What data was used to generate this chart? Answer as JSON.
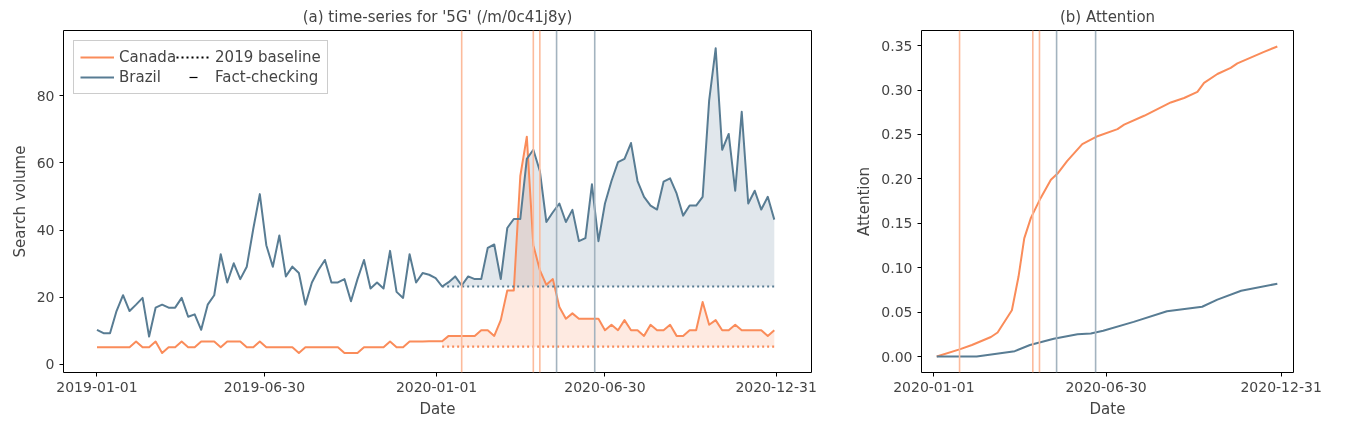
{
  "chart_data": [
    {
      "type": "line",
      "title": "(a) time-series for '5G' (/m/0c41j8y)",
      "xlabel": "Date",
      "ylabel": "Search volume",
      "x": [
        "2019-01-01",
        "2019-01-08",
        "2019-01-15",
        "2019-01-22",
        "2019-01-29",
        "2019-02-05",
        "2019-02-12",
        "2019-02-19",
        "2019-02-26",
        "2019-03-05",
        "2019-03-12",
        "2019-03-19",
        "2019-03-26",
        "2019-04-02",
        "2019-04-09",
        "2019-04-16",
        "2019-04-23",
        "2019-04-30",
        "2019-05-07",
        "2019-05-14",
        "2019-05-21",
        "2019-05-28",
        "2019-06-04",
        "2019-06-11",
        "2019-06-18",
        "2019-06-25",
        "2019-07-02",
        "2019-07-09",
        "2019-07-16",
        "2019-07-23",
        "2019-07-30",
        "2019-08-06",
        "2019-08-13",
        "2019-08-20",
        "2019-08-27",
        "2019-09-03",
        "2019-09-10",
        "2019-09-17",
        "2019-09-24",
        "2019-10-01",
        "2019-10-08",
        "2019-10-15",
        "2019-10-22",
        "2019-10-29",
        "2019-11-05",
        "2019-11-12",
        "2019-11-19",
        "2019-11-26",
        "2019-12-03",
        "2019-12-10",
        "2019-12-17",
        "2019-12-24",
        "2019-12-31",
        "2020-01-07",
        "2020-01-14",
        "2020-01-21",
        "2020-01-28",
        "2020-02-04",
        "2020-02-11",
        "2020-02-18",
        "2020-02-25",
        "2020-03-03",
        "2020-03-10",
        "2020-03-17",
        "2020-03-24",
        "2020-03-31",
        "2020-04-07",
        "2020-04-14",
        "2020-04-21",
        "2020-04-28",
        "2020-05-05",
        "2020-05-12",
        "2020-05-19",
        "2020-05-26",
        "2020-06-02",
        "2020-06-09",
        "2020-06-16",
        "2020-06-23",
        "2020-06-30",
        "2020-07-07",
        "2020-07-14",
        "2020-07-21",
        "2020-07-28",
        "2020-08-04",
        "2020-08-11",
        "2020-08-18",
        "2020-08-25",
        "2020-09-01",
        "2020-09-08",
        "2020-09-15",
        "2020-09-22",
        "2020-09-29",
        "2020-10-06",
        "2020-10-13",
        "2020-10-20",
        "2020-10-27",
        "2020-11-03",
        "2020-11-10",
        "2020-11-17",
        "2020-11-24",
        "2020-12-01",
        "2020-12-08",
        "2020-12-15",
        "2020-12-22",
        "2020-12-29"
      ],
      "series": [
        {
          "name": "Canada",
          "color": "#fa8c5a",
          "lower": [
            null,
            null,
            null,
            null,
            null,
            null,
            null,
            null,
            null,
            null,
            null,
            null,
            null,
            null,
            null,
            null,
            null,
            null,
            null,
            null,
            null,
            null,
            null,
            null,
            null,
            null,
            null,
            null,
            null,
            null,
            null,
            null,
            null,
            null,
            null,
            null,
            null,
            null,
            null,
            null,
            null,
            null,
            null,
            null,
            null,
            null,
            null,
            null,
            null,
            null,
            null,
            null,
            null,
            5.3,
            5.3,
            5.3,
            5.3,
            5.3,
            5.3,
            5.3,
            5.3,
            5.3,
            5.3,
            5.3,
            5.3,
            5.3,
            5.3,
            5.3,
            5.3,
            5.3,
            5.3,
            5.3,
            5.3,
            5.3,
            5.3,
            5.3,
            5.3,
            5.3,
            5.3,
            5.3,
            5.3,
            5.3,
            5.3,
            5.3,
            5.3,
            5.3,
            5.3,
            5.3,
            5.3,
            5.3,
            5.3,
            5.3,
            5.3,
            5.3,
            5.3,
            5.3,
            5.3,
            5.3,
            5.3,
            5.3,
            5.3,
            5.3,
            5.3,
            5.3,
            5.3
          ],
          "upper": [
            null,
            null,
            null,
            null,
            null,
            null,
            null,
            null,
            null,
            null,
            null,
            null,
            null,
            null,
            null,
            null,
            null,
            null,
            null,
            null,
            null,
            null,
            null,
            null,
            null,
            null,
            null,
            null,
            null,
            null,
            null,
            null,
            null,
            null,
            null,
            null,
            null,
            null,
            null,
            null,
            null,
            null,
            null,
            null,
            null,
            null,
            null,
            null,
            null,
            null,
            null,
            null,
            null,
            6.9,
            8.5,
            8.5,
            8.5,
            8.5,
            8.5,
            10.2,
            10.2,
            8.5,
            13.2,
            22.0,
            22.0,
            56.1,
            67.8,
            35.5,
            28.1,
            23.7,
            25.4,
            17.1,
            13.6,
            15.2,
            13.6,
            13.6,
            13.6,
            13.6,
            10.2,
            11.8,
            10.2,
            13.2,
            10.2,
            10.2,
            8.5,
            11.8,
            10.2,
            10.2,
            11.8,
            8.5,
            8.5,
            10.2,
            10.2,
            18.6,
            11.8,
            13.2,
            10.2,
            10.2,
            11.8,
            10.2,
            10.2,
            10.2,
            10.2,
            8.5,
            10.2
          ],
          "values": [
            5.1,
            5.1,
            5.1,
            5.1,
            5.1,
            5.1,
            6.8,
            5.1,
            5.1,
            6.8,
            3.4,
            5.1,
            5.1,
            6.8,
            5.1,
            5.1,
            6.8,
            6.8,
            6.8,
            5.1,
            6.8,
            6.8,
            6.8,
            5.1,
            5.1,
            6.8,
            5.1,
            5.1,
            5.1,
            5.1,
            5.1,
            3.4,
            5.1,
            5.1,
            5.1,
            5.1,
            5.1,
            5.1,
            3.4,
            3.4,
            3.4,
            5.1,
            5.1,
            5.1,
            5.1,
            6.8,
            5.1,
            5.1,
            6.8,
            6.8,
            6.8,
            6.9,
            6.9,
            6.9,
            8.5,
            8.5,
            8.5,
            8.5,
            8.5,
            10.2,
            10.2,
            8.5,
            13.2,
            22.0,
            22.0,
            56.1,
            67.8,
            35.5,
            28.1,
            23.7,
            25.4,
            17.1,
            13.6,
            15.2,
            13.6,
            13.6,
            13.6,
            13.6,
            10.2,
            11.8,
            10.2,
            13.2,
            10.2,
            10.2,
            8.5,
            11.8,
            10.2,
            10.2,
            11.8,
            8.5,
            8.5,
            10.2,
            10.2,
            18.6,
            11.8,
            13.2,
            10.2,
            10.2,
            11.8,
            10.2,
            10.2,
            10.2,
            10.2,
            8.5,
            10.2
          ]
        },
        {
          "name": "Brazil",
          "color": "#587c93",
          "lower": [
            null,
            null,
            null,
            null,
            null,
            null,
            null,
            null,
            null,
            null,
            null,
            null,
            null,
            null,
            null,
            null,
            null,
            null,
            null,
            null,
            null,
            null,
            null,
            null,
            null,
            null,
            null,
            null,
            null,
            null,
            null,
            null,
            null,
            null,
            null,
            null,
            null,
            null,
            null,
            null,
            null,
            null,
            null,
            null,
            null,
            null,
            null,
            null,
            null,
            null,
            null,
            null,
            null,
            23.2,
            23.2,
            23.2,
            23.2,
            23.2,
            23.2,
            23.2,
            23.2,
            23.2,
            23.2,
            23.2,
            23.2,
            23.2,
            23.2,
            23.2,
            23.2,
            23.2,
            23.2,
            23.2,
            23.2,
            23.2,
            23.2,
            23.2,
            23.2,
            23.2,
            23.2,
            23.2,
            23.2,
            23.2,
            23.2,
            23.2,
            23.2,
            23.2,
            23.2,
            23.2,
            23.2,
            23.2,
            23.2,
            23.2,
            23.2,
            23.2,
            23.2,
            23.2,
            23.2,
            23.2,
            23.2,
            23.2,
            23.2,
            23.2,
            23.2,
            23.2,
            23.2
          ],
          "upper": [
            null,
            null,
            null,
            null,
            null,
            null,
            null,
            null,
            null,
            null,
            null,
            null,
            null,
            null,
            null,
            null,
            null,
            null,
            null,
            null,
            null,
            null,
            null,
            null,
            null,
            null,
            null,
            null,
            null,
            null,
            null,
            null,
            null,
            null,
            null,
            null,
            null,
            null,
            null,
            null,
            null,
            null,
            null,
            null,
            null,
            null,
            null,
            null,
            null,
            null,
            null,
            null,
            null,
            23.2,
            24.5,
            26.2,
            23.5,
            26.2,
            25.4,
            25.4,
            34.7,
            35.7,
            25.4,
            40.6,
            43.3,
            43.3,
            61.2,
            63.9,
            57.6,
            42.4,
            45.3,
            47.9,
            42.4,
            46.0,
            36.7,
            37.6,
            53.6,
            36.7,
            47.9,
            54.6,
            60.2,
            61.2,
            65.9,
            54.6,
            49.9,
            47.3,
            46.1,
            54.4,
            55.4,
            50.9,
            44.3,
            47.3,
            47.3,
            49.9,
            78.6,
            94.1,
            63.9,
            68.6,
            51.7,
            75.2,
            47.9,
            51.7,
            46.1,
            49.9,
            43.1
          ],
          "values": [
            10.3,
            9.3,
            9.3,
            15.9,
            20.6,
            15.9,
            17.8,
            19.8,
            8.3,
            16.9,
            17.8,
            16.9,
            16.9,
            19.8,
            14.2,
            14.9,
            10.3,
            17.8,
            20.6,
            32.8,
            24.4,
            30.1,
            25.4,
            29.1,
            40.4,
            50.7,
            35.5,
            29.1,
            38.4,
            26.2,
            29.1,
            27.2,
            17.8,
            24.4,
            28.1,
            31.1,
            24.4,
            24.4,
            25.4,
            18.8,
            25.4,
            31.1,
            22.6,
            24.4,
            22.6,
            33.8,
            21.6,
            19.8,
            32.8,
            24.4,
            27.2,
            26.7,
            25.7,
            23.2,
            24.5,
            26.2,
            23.5,
            26.2,
            25.4,
            25.4,
            34.7,
            35.7,
            25.4,
            40.6,
            43.3,
            43.3,
            61.2,
            63.9,
            57.6,
            42.4,
            45.3,
            47.9,
            42.4,
            46.0,
            36.7,
            37.6,
            53.6,
            36.7,
            47.9,
            54.6,
            60.2,
            61.2,
            65.9,
            54.6,
            49.9,
            47.3,
            46.1,
            54.4,
            55.4,
            50.9,
            44.3,
            47.3,
            47.3,
            49.9,
            78.6,
            94.1,
            63.9,
            68.6,
            51.7,
            75.2,
            47.9,
            51.7,
            46.1,
            49.9,
            43.1
          ]
        },
        {
          "color": "#fa8c5a",
          "line_style": "dotted",
          "x": [
            "2020-01-07",
            "2020-12-29"
          ],
          "values": [
            5.3,
            5.3
          ]
        },
        {
          "color": "#587c93",
          "line_style": "dotted",
          "x": [
            "2020-01-07",
            "2020-12-29"
          ],
          "values": [
            23.2,
            23.2
          ]
        }
      ],
      "annotations": [
        "2019 baseline",
        "Fact-checking"
      ],
      "ref_lines": [
        {
          "axis": "x",
          "value": "2020-01-28",
          "color": "#fcbb9c"
        },
        {
          "axis": "x",
          "value": "2020-04-14",
          "color": "#fcbb9c"
        },
        {
          "axis": "x",
          "value": "2020-04-21",
          "color": "#fcbb9c"
        },
        {
          "axis": "x",
          "value": "2020-05-09",
          "color": "#a3b3bf"
        },
        {
          "axis": "x",
          "value": "2020-06-19",
          "color": "#a3b3bf"
        }
      ],
      "xlim": [
        "2018-11-26",
        "2021-02-07"
      ],
      "xticks": [
        {
          "value": "2019-01-01",
          "label": "2019-01-01"
        },
        {
          "value": "2019-06-30",
          "label": "2019-06-30"
        },
        {
          "value": "2020-01-01",
          "label": "2020-01-01"
        },
        {
          "value": "2020-06-30",
          "label": "2020-06-30"
        },
        {
          "value": "2020-12-31",
          "label": "2020-12-31"
        }
      ],
      "ylim": [
        -2.4,
        99.4
      ],
      "yticks": [
        0,
        20,
        40,
        60,
        80
      ],
      "legend": "top left",
      "line_style": "solid"
    },
    {
      "type": "line",
      "title": "(b) Attention",
      "xlabel": "Date",
      "ylabel": "Attention",
      "series": [
        {
          "color": "#fa8c5a",
          "x": [
            "2020-01-04",
            "2020-01-28",
            "2020-02-10",
            "2020-03-01",
            "2020-03-08",
            "2020-03-23",
            "2020-03-30",
            "2020-04-05",
            "2020-04-12",
            "2020-04-22",
            "2020-05-03",
            "2020-05-10",
            "2020-05-20",
            "2020-06-05",
            "2020-06-21",
            "2020-07-12",
            "2020-07-19",
            "2020-08-09",
            "2020-09-06",
            "2020-09-20",
            "2020-10-04",
            "2020-10-11",
            "2020-10-25",
            "2020-11-08",
            "2020-11-15",
            "2020-12-13",
            "2020-12-27"
          ],
          "values": [
            0.0,
            0.008,
            0.013,
            0.022,
            0.027,
            0.052,
            0.09,
            0.133,
            0.156,
            0.178,
            0.199,
            0.206,
            0.22,
            0.239,
            0.248,
            0.256,
            0.261,
            0.271,
            0.286,
            0.291,
            0.298,
            0.308,
            0.318,
            0.325,
            0.33,
            0.343,
            0.349
          ]
        },
        {
          "color": "#587c93",
          "x": [
            "2020-01-04",
            "2020-02-15",
            "2020-03-07",
            "2020-03-26",
            "2020-04-11",
            "2020-05-06",
            "2020-05-31",
            "2020-06-14",
            "2020-06-27",
            "2020-07-29",
            "2020-09-02",
            "2020-10-09",
            "2020-10-25",
            "2020-11-19",
            "2020-12-27"
          ],
          "values": [
            0.0,
            0.0,
            0.003,
            0.006,
            0.013,
            0.02,
            0.025,
            0.026,
            0.029,
            0.039,
            0.051,
            0.056,
            0.064,
            0.074,
            0.082
          ]
        }
      ],
      "ref_lines": [
        {
          "axis": "x",
          "value": "2020-01-28",
          "color": "#fcbb9c"
        },
        {
          "axis": "x",
          "value": "2020-04-14",
          "color": "#fcbb9c"
        },
        {
          "axis": "x",
          "value": "2020-04-21",
          "color": "#fcbb9c"
        },
        {
          "axis": "x",
          "value": "2020-05-09",
          "color": "#a3b3bf"
        },
        {
          "axis": "x",
          "value": "2020-06-19",
          "color": "#a3b3bf"
        }
      ],
      "xlim": [
        "2019-12-19",
        "2021-01-13"
      ],
      "xticks": [
        {
          "value": "2020-01-01",
          "label": "2020-01-01"
        },
        {
          "value": "2020-06-30",
          "label": "2020-06-30"
        },
        {
          "value": "2020-12-31",
          "label": "2020-12-31"
        }
      ],
      "ylim": [
        -0.018,
        0.367
      ],
      "yticks": [
        {
          "value": 0,
          "label": "0.00"
        },
        {
          "value": 0.05,
          "label": "0.05"
        },
        {
          "value": 0.1,
          "label": "0.10"
        },
        {
          "value": 0.15,
          "label": "0.15"
        },
        {
          "value": 0.2,
          "label": "0.20"
        },
        {
          "value": 0.25,
          "label": "0.25"
        },
        {
          "value": 0.3,
          "label": "0.30"
        },
        {
          "value": 0.35,
          "label": "0.35"
        }
      ],
      "line_style": "solid"
    }
  ]
}
